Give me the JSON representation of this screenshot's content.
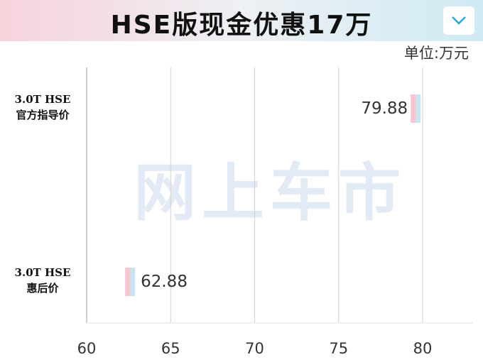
{
  "title": "HSE版现金优惠17万",
  "chart_data": {
    "type": "bar",
    "orientation": "horizontal",
    "unit_label": "单位:万元",
    "watermark": "网上车市",
    "categories": [
      "3.0T  HSE\n官方指导价",
      "3.0T  HSE\n惠后价"
    ],
    "values": [
      79.88,
      62.88
    ],
    "xlim": [
      60,
      83
    ],
    "xticks": [
      60,
      65,
      70,
      75,
      80
    ],
    "grid": true,
    "colors": [
      "#f5c6d2",
      "#c4e6f2"
    ]
  }
}
